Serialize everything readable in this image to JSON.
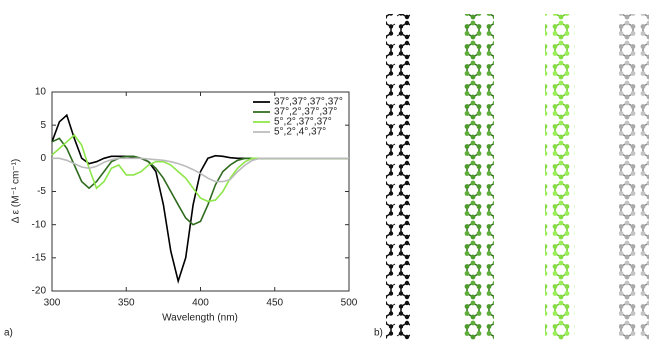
{
  "chart_data": {
    "type": "line",
    "xlabel": "Wavelength (nm)",
    "ylabel": "Δ ε (M⁻¹ cm⁻¹)",
    "panel_labels": [
      "a)",
      "b)"
    ],
    "x": [
      300,
      305,
      310,
      315,
      320,
      325,
      330,
      335,
      340,
      345,
      350,
      355,
      360,
      365,
      370,
      375,
      380,
      385,
      390,
      395,
      400,
      405,
      410,
      415,
      420,
      425,
      430,
      435,
      440,
      445,
      450,
      460,
      500
    ],
    "series": [
      {
        "name": "37°,37°,37°,37°",
        "color": "#000000",
        "values": [
          2.5,
          5.5,
          6.5,
          3,
          0,
          -0.8,
          -0.5,
          0,
          0.3,
          0.3,
          0.3,
          0.2,
          0,
          -0.5,
          -2,
          -7,
          -14,
          -18.5,
          -15,
          -7,
          -2,
          0,
          0.4,
          0.3,
          0.1,
          0,
          0,
          0,
          0,
          0,
          0,
          0,
          0
        ]
      },
      {
        "name": "37°,2°,37°,37°",
        "color": "#2f6b1e",
        "values": [
          2.5,
          3,
          1.5,
          -1,
          -3.5,
          -4.5,
          -3.5,
          -2,
          -0.5,
          0,
          0.3,
          0.3,
          0,
          -0.5,
          -1.5,
          -3,
          -5,
          -7,
          -9,
          -10,
          -9.5,
          -7,
          -4,
          -2,
          -1,
          -0.3,
          0,
          0,
          0,
          0,
          0,
          0,
          0
        ]
      },
      {
        "name": "5°,2°,37°,37°",
        "color": "#8ee64a",
        "values": [
          0.5,
          1.5,
          2.5,
          3.5,
          2,
          -1.5,
          -4.5,
          -3.5,
          -1.5,
          -1,
          -2.5,
          -2.5,
          -2,
          -1,
          -0.5,
          -0.5,
          -1,
          -2,
          -3,
          -4.5,
          -6,
          -6.5,
          -6.3,
          -5,
          -3,
          -1.5,
          -0.5,
          0,
          0,
          0,
          0,
          0,
          0
        ]
      },
      {
        "name": "5°,2°,4°,37°",
        "color": "#bbbbbb",
        "values": [
          0,
          0,
          -0.3,
          -0.8,
          -1.3,
          -1.5,
          -1.2,
          -0.6,
          -0.2,
          0,
          0,
          0,
          0,
          -0.1,
          -0.2,
          -0.3,
          -0.5,
          -0.8,
          -1.2,
          -1.7,
          -2.3,
          -3,
          -3.5,
          -3.5,
          -3.2,
          -2,
          -1,
          -0.3,
          0,
          0,
          0,
          0,
          0
        ]
      }
    ],
    "xlim": [
      300,
      500
    ],
    "xticks": [
      300,
      350,
      400,
      450,
      500
    ],
    "ylim": [
      -20,
      10
    ],
    "yticks": [
      -20,
      -15,
      -10,
      -5,
      0,
      5,
      10
    ],
    "legend": "upper right"
  }
}
